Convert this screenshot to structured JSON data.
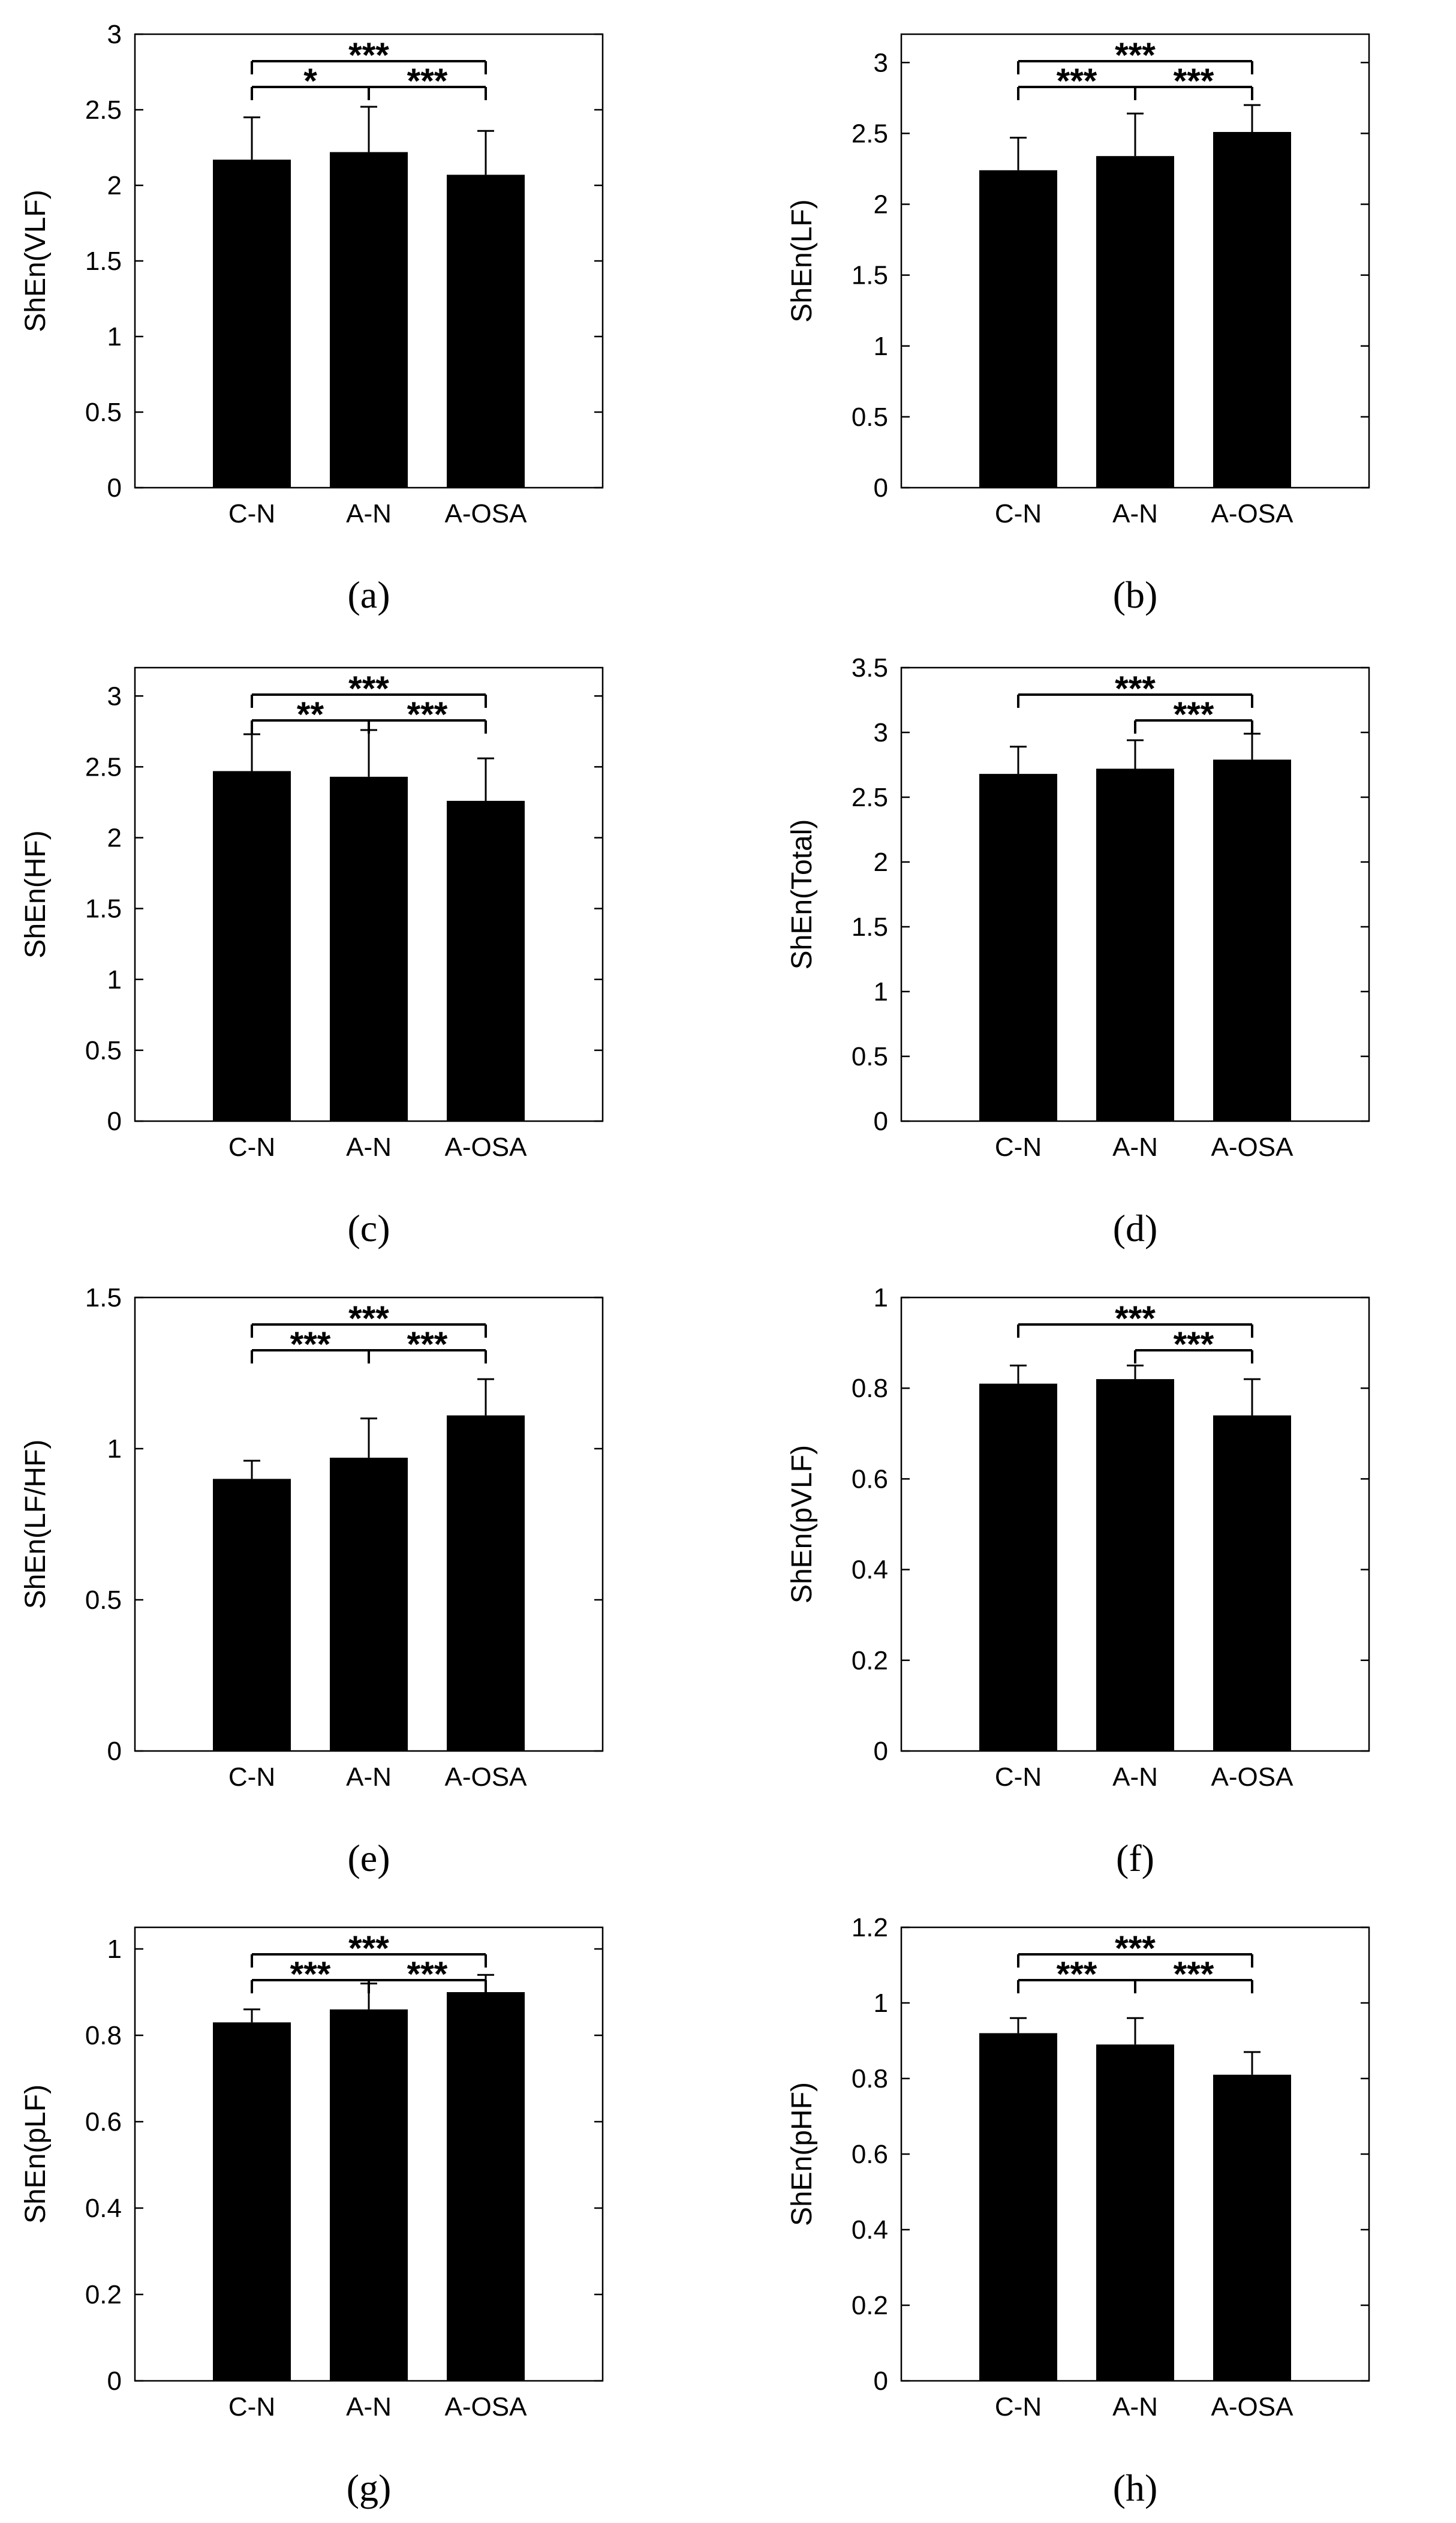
{
  "colors": {
    "bar": "#000000",
    "axis": "#000000",
    "background": "#ffffff"
  },
  "chart_data": [
    {
      "type": "bar",
      "panel": "(a)",
      "panel_letter": "a",
      "categories": [
        "C-N",
        "A-N",
        "A-OSA"
      ],
      "values": [
        2.17,
        2.22,
        2.07
      ],
      "errors": [
        0.28,
        0.3,
        0.29
      ],
      "ylabel": "ShEn(VLF)",
      "ylim": [
        0,
        3
      ],
      "yticks": [
        0,
        0.5,
        1,
        1.5,
        2,
        2.5,
        3
      ],
      "ytick_labels": [
        "0",
        "0.5",
        "1",
        "1.5",
        "2",
        "2.5",
        "3"
      ],
      "significance": [
        {
          "from": 0,
          "to": 2,
          "label": "***"
        },
        {
          "from": 0,
          "to": 1,
          "label": "*"
        },
        {
          "from": 1,
          "to": 2,
          "label": "***"
        }
      ]
    },
    {
      "type": "bar",
      "panel": "(b)",
      "panel_letter": "b",
      "categories": [
        "C-N",
        "A-N",
        "A-OSA"
      ],
      "values": [
        2.24,
        2.34,
        2.51
      ],
      "errors": [
        0.23,
        0.3,
        0.19
      ],
      "ylabel": "ShEn(LF)",
      "ylim": [
        0,
        3.2
      ],
      "yticks": [
        0,
        0.5,
        1,
        1.5,
        2,
        2.5,
        3
      ],
      "ytick_labels": [
        "0",
        "0.5",
        "1",
        "1.5",
        "2",
        "2.5",
        "3"
      ],
      "significance": [
        {
          "from": 0,
          "to": 2,
          "label": "***"
        },
        {
          "from": 0,
          "to": 1,
          "label": "***"
        },
        {
          "from": 1,
          "to": 2,
          "label": "***"
        }
      ]
    },
    {
      "type": "bar",
      "panel": "(c)",
      "panel_letter": "c",
      "categories": [
        "C-N",
        "A-N",
        "A-OSA"
      ],
      "values": [
        2.47,
        2.43,
        2.26
      ],
      "errors": [
        0.26,
        0.33,
        0.3
      ],
      "ylabel": "ShEn(HF)",
      "ylim": [
        0,
        3.2
      ],
      "yticks": [
        0,
        0.5,
        1,
        1.5,
        2,
        2.5,
        3
      ],
      "ytick_labels": [
        "0",
        "0.5",
        "1",
        "1.5",
        "2",
        "2.5",
        "3"
      ],
      "significance": [
        {
          "from": 0,
          "to": 2,
          "label": "***"
        },
        {
          "from": 0,
          "to": 1,
          "label": "**"
        },
        {
          "from": 1,
          "to": 2,
          "label": "***"
        }
      ]
    },
    {
      "type": "bar",
      "panel": "(d)",
      "panel_letter": "d",
      "categories": [
        "C-N",
        "A-N",
        "A-OSA"
      ],
      "values": [
        2.68,
        2.72,
        2.79
      ],
      "errors": [
        0.21,
        0.22,
        0.2
      ],
      "ylabel": "ShEn(Total)",
      "ylim": [
        0,
        3.5
      ],
      "yticks": [
        0,
        0.5,
        1,
        1.5,
        2,
        2.5,
        3,
        3.5
      ],
      "ytick_labels": [
        "0",
        "0.5",
        "1",
        "1.5",
        "2",
        "2.5",
        "3",
        "3.5"
      ],
      "significance": [
        {
          "from": 0,
          "to": 2,
          "label": "***"
        },
        {
          "from": 1,
          "to": 2,
          "label": "***"
        }
      ]
    },
    {
      "type": "bar",
      "panel": "(e)",
      "panel_letter": "e",
      "categories": [
        "C-N",
        "A-N",
        "A-OSA"
      ],
      "values": [
        0.9,
        0.97,
        1.11
      ],
      "errors": [
        0.06,
        0.13,
        0.12
      ],
      "ylabel": "ShEn(LF/HF)",
      "ylim": [
        0,
        1.5
      ],
      "yticks": [
        0,
        0.5,
        1,
        1.5
      ],
      "ytick_labels": [
        "0",
        "0.5",
        "1",
        "1.5"
      ],
      "significance": [
        {
          "from": 0,
          "to": 2,
          "label": "***"
        },
        {
          "from": 0,
          "to": 1,
          "label": "***"
        },
        {
          "from": 1,
          "to": 2,
          "label": "***"
        }
      ]
    },
    {
      "type": "bar",
      "panel": "(f)",
      "panel_letter": "f",
      "categories": [
        "C-N",
        "A-N",
        "A-OSA"
      ],
      "values": [
        0.81,
        0.82,
        0.74
      ],
      "errors": [
        0.04,
        0.03,
        0.08
      ],
      "ylabel": "ShEn(pVLF)",
      "ylim": [
        0,
        1
      ],
      "yticks": [
        0,
        0.2,
        0.4,
        0.6,
        0.8,
        1
      ],
      "ytick_labels": [
        "0",
        "0.2",
        "0.4",
        "0.6",
        "0.8",
        "1"
      ],
      "significance": [
        {
          "from": 0,
          "to": 2,
          "label": "***"
        },
        {
          "from": 1,
          "to": 2,
          "label": "***"
        }
      ]
    },
    {
      "type": "bar",
      "panel": "(g)",
      "panel_letter": "g",
      "categories": [
        "C-N",
        "A-N",
        "A-OSA"
      ],
      "values": [
        0.83,
        0.86,
        0.9
      ],
      "errors": [
        0.03,
        0.06,
        0.04
      ],
      "ylabel": "ShEn(pLF)",
      "ylim": [
        0,
        1.05
      ],
      "yticks": [
        0,
        0.2,
        0.4,
        0.6,
        0.8,
        1
      ],
      "ytick_labels": [
        "0",
        "0.2",
        "0.4",
        "0.6",
        "0.8",
        "1"
      ],
      "significance": [
        {
          "from": 0,
          "to": 2,
          "label": "***"
        },
        {
          "from": 0,
          "to": 1,
          "label": "***"
        },
        {
          "from": 1,
          "to": 2,
          "label": "***"
        }
      ]
    },
    {
      "type": "bar",
      "panel": "(h)",
      "panel_letter": "h",
      "categories": [
        "C-N",
        "A-N",
        "A-OSA"
      ],
      "values": [
        0.92,
        0.89,
        0.81
      ],
      "errors": [
        0.04,
        0.07,
        0.06
      ],
      "ylabel": "ShEn(pHF)",
      "ylim": [
        0,
        1.2
      ],
      "yticks": [
        0,
        0.2,
        0.4,
        0.6,
        0.8,
        1,
        1.2
      ],
      "ytick_labels": [
        "0",
        "0.2",
        "0.4",
        "0.6",
        "0.8",
        "1",
        "1.2"
      ],
      "significance": [
        {
          "from": 0,
          "to": 2,
          "label": "***"
        },
        {
          "from": 0,
          "to": 1,
          "label": "***"
        },
        {
          "from": 1,
          "to": 2,
          "label": "***"
        }
      ]
    }
  ]
}
